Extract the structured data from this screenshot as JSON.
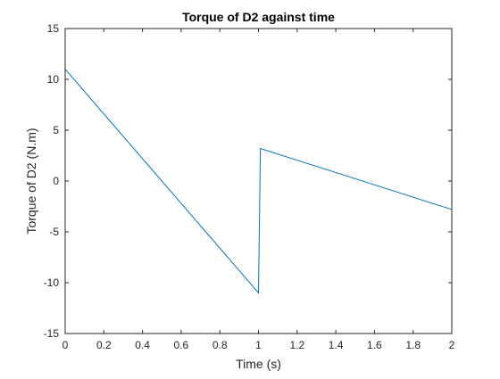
{
  "chart_data": {
    "type": "line",
    "title": "Torque of D2 against time",
    "xlabel": "Time (s)",
    "ylabel": "Torque of D2 (N.m)",
    "xlim": [
      0,
      2
    ],
    "ylim": [
      -15,
      15
    ],
    "xticks": [
      0,
      0.2,
      0.4,
      0.6,
      0.8,
      1,
      1.2,
      1.4,
      1.6,
      1.8,
      2
    ],
    "xtick_labels": [
      "0",
      "0.2",
      "0.4",
      "0.6",
      "0.8",
      "1",
      "1.2",
      "1.4",
      "1.6",
      "1.8",
      "2"
    ],
    "yticks": [
      -15,
      -10,
      -5,
      0,
      5,
      10,
      15
    ],
    "ytick_labels": [
      "-15",
      "-10",
      "-5",
      "0",
      "5",
      "10",
      "15"
    ],
    "grid": false,
    "legend": "none",
    "series": [
      {
        "color": "#0072BD",
        "x": [
          0,
          1.0,
          1.01,
          2.0
        ],
        "y": [
          11.0,
          -11.0,
          3.2,
          -2.8
        ]
      }
    ]
  }
}
